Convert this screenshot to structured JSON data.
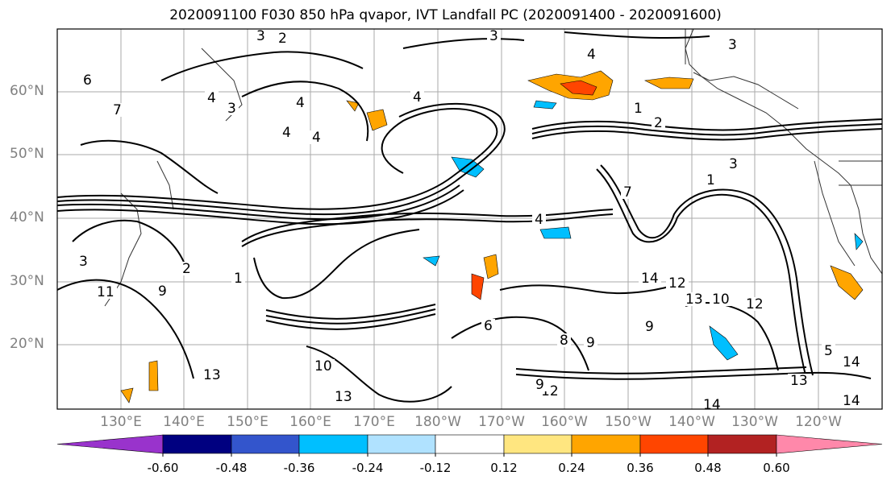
{
  "title": "2020091100 F030 850 hPa qvapor, IVT Landfall PC (2020091400 - 2020091600)",
  "lat_labels": [
    "60°N",
    "50°N",
    "40°N",
    "30°N",
    "20°N"
  ],
  "lon_labels": [
    "130°E",
    "140°E",
    "150°E",
    "160°E",
    "170°E",
    "180°W",
    "170°W",
    "160°W",
    "150°W",
    "140°W",
    "130°W",
    "120°W"
  ],
  "contour_labels": [
    "3",
    "2",
    "3",
    "4",
    "3",
    "6",
    "4",
    "3",
    "7",
    "4",
    "4",
    "4",
    "4",
    "1",
    "2",
    "3",
    "1",
    "7",
    "4",
    "3",
    "2",
    "1",
    "11",
    "9",
    "14",
    "12",
    "13",
    "10",
    "9",
    "5",
    "13",
    "12",
    "9",
    "8",
    "9",
    "14",
    "13",
    "14",
    "14",
    "13",
    "10",
    "6",
    "12"
  ],
  "colorbar": {
    "ticks": [
      "-0.60",
      "-0.48",
      "-0.36",
      "-0.24",
      "-0.12",
      "0.12",
      "0.24",
      "0.36",
      "0.48",
      "0.60"
    ],
    "colors": [
      "#9933cc",
      "#000080",
      "#3355cc",
      "#00bfff",
      "#b0e2ff",
      "#ffffff",
      "#ffe680",
      "#ffa500",
      "#ff4500",
      "#b22222",
      "#ff88aa"
    ]
  }
}
